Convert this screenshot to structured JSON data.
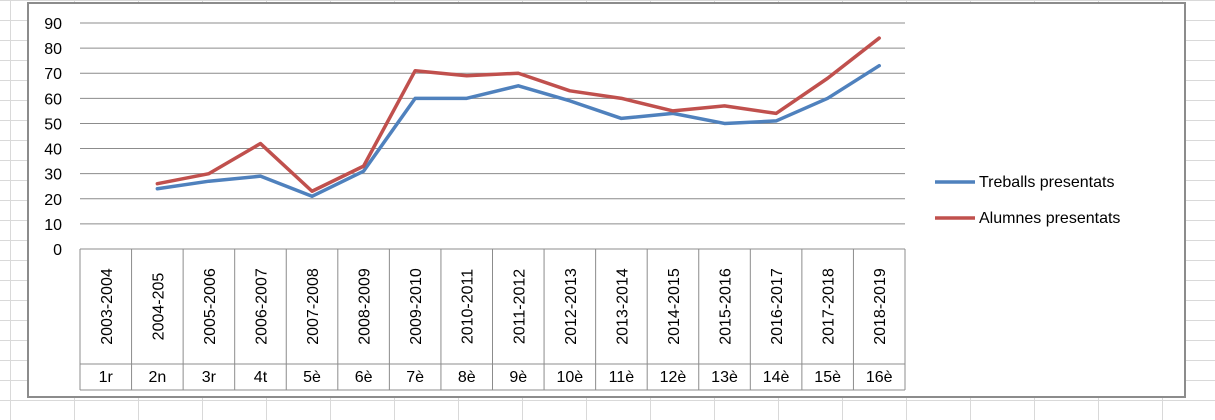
{
  "chart_data": {
    "type": "line",
    "categories": [
      "2003-2004",
      "2004-205",
      "2005-2006",
      "2006-2007",
      "2007-2008",
      "2008-2009",
      "2009-2010",
      "2010-2011",
      "2011-2012",
      "2012-2013",
      "2013-2014",
      "2014-2015",
      "2015-2016",
      "2016-2017",
      "2017-2018",
      "2018-2019"
    ],
    "categories_secondary": [
      "1r",
      "2n",
      "3r",
      "4t",
      "5è",
      "6è",
      "7è",
      "8è",
      "9è",
      "10è",
      "11è",
      "12è",
      "13è",
      "14è",
      "15è",
      "16è"
    ],
    "series": [
      {
        "name": "Treballs presentats",
        "color": "#4f81bd",
        "values": [
          null,
          24,
          27,
          29,
          21,
          31,
          60,
          60,
          65,
          59,
          52,
          54,
          50,
          51,
          60,
          73
        ]
      },
      {
        "name": "Alumnes presentats",
        "color": "#c0504d",
        "values": [
          null,
          26,
          30,
          42,
          23,
          33,
          71,
          69,
          70,
          63,
          60,
          55,
          57,
          54,
          68,
          84
        ]
      }
    ],
    "ylim": [
      0,
      90
    ],
    "yticks": [
      "0",
      "10",
      "20",
      "30",
      "40",
      "50",
      "60",
      "70",
      "80",
      "90"
    ],
    "grid": true,
    "legend": "right"
  }
}
